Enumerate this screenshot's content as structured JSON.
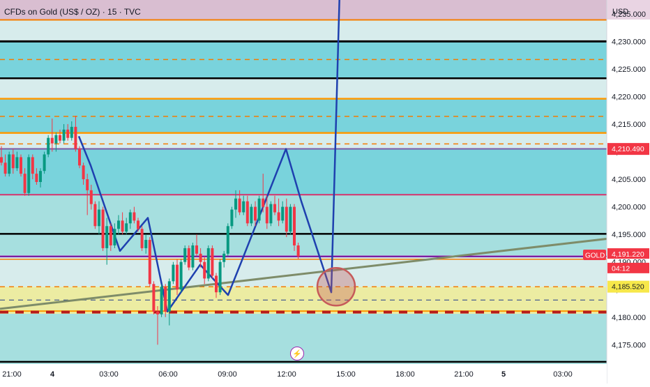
{
  "header": {
    "title": "CFDs on Gold (US$ / OZ) · 15 · TVC",
    "currency": "USD"
  },
  "chart_data": {
    "type": "candlestick",
    "title": "CFDs on Gold (US$ / OZ) · 15 · TVC",
    "ylim": [
      4171.5,
      4237.5
    ],
    "y_ticks": [
      "4,235.000",
      "4,230.000",
      "4,225.000",
      "4,220.000",
      "4,215.000",
      "4,210.000",
      "4,205.000",
      "4,200.000",
      "4,195.000",
      "4,190.000",
      "4,185.000",
      "4,180.000",
      "4,175.000"
    ],
    "y_tick_values": [
      4235,
      4230,
      4225,
      4220,
      4215,
      4210,
      4205,
      4200,
      4195,
      4190,
      4185,
      4180,
      4175
    ],
    "x_tick_labels": [
      "21:00",
      "4",
      "03:00",
      "06:00",
      "09:00",
      "12:00",
      "15:00",
      "18:00",
      "21:00",
      "5",
      "03:00"
    ],
    "price_labels": [
      {
        "text": "4,210.490",
        "value": 4210.49,
        "color": "#f23645"
      },
      {
        "text": "GOLD",
        "value": 4191.22,
        "color": "#f23645"
      },
      {
        "text": "4,191.220",
        "value": 4191.22,
        "color": "#f23645"
      },
      {
        "text": "04:12",
        "value": 4189.6,
        "color": "#f23645"
      },
      {
        "text": "4,185.520",
        "value": 4185.52,
        "color": "#f7e84a"
      }
    ],
    "zones": [
      {
        "from": 4230.0,
        "to": 4237.5,
        "color": "#d9bed1"
      },
      {
        "from": 4230.0,
        "to": 4233.9,
        "color": "#d7ecec"
      },
      {
        "from": 4223.3,
        "to": 4230.0,
        "color": "#79d3dc"
      },
      {
        "from": 4219.6,
        "to": 4223.3,
        "color": "#d7ecec"
      },
      {
        "from": 4213.4,
        "to": 4219.6,
        "color": "#79d3dc"
      },
      {
        "from": 4210.5,
        "to": 4213.4,
        "color": "#d7ecec"
      },
      {
        "from": 4202.2,
        "to": 4210.5,
        "color": "#79d3dc"
      },
      {
        "from": 4191.2,
        "to": 4202.2,
        "color": "#a6dfdf"
      },
      {
        "from": 4185.5,
        "to": 4191.2,
        "color": "#d7ecec"
      },
      {
        "from": 4180.6,
        "to": 4185.5,
        "color": "#ececa2"
      },
      {
        "from": 4171.5,
        "to": 4180.6,
        "color": "#a6dfdf"
      }
    ],
    "levels": [
      {
        "value": 4233.9,
        "color": "#f57c00",
        "style": "solid",
        "width": 2
      },
      {
        "value": 4230.0,
        "color": "#000000",
        "style": "solid",
        "width": 3
      },
      {
        "value": 4226.7,
        "color": "#f57c00",
        "style": "dashed",
        "width": 1.5
      },
      {
        "value": 4223.3,
        "color": "#000000",
        "style": "solid",
        "width": 2.5
      },
      {
        "value": 4219.6,
        "color": "#ff9800",
        "style": "solid",
        "width": 2.5
      },
      {
        "value": 4216.4,
        "color": "#f57c00",
        "style": "dashed",
        "width": 1.5
      },
      {
        "value": 4213.4,
        "color": "#ff9800",
        "style": "solid",
        "width": 2.5
      },
      {
        "value": 4211.4,
        "color": "#f57c00",
        "style": "dashed",
        "width": 1.5
      },
      {
        "value": 4210.5,
        "color": "#7b5aa6",
        "style": "solid",
        "width": 2
      },
      {
        "value": 4202.2,
        "color": "#d6336c",
        "style": "solid",
        "width": 2
      },
      {
        "value": 4195.1,
        "color": "#000000",
        "style": "solid",
        "width": 2.5
      },
      {
        "value": 4191.0,
        "color": "#7b1fa2",
        "style": "solid",
        "width": 2.5
      },
      {
        "value": 4190.5,
        "color": "#f57c00",
        "style": "solid",
        "width": 1.5
      },
      {
        "value": 4185.5,
        "color": "#f57c00",
        "style": "dashed",
        "width": 1.5
      },
      {
        "value": 4183.1,
        "color": "#1e3a8a",
        "style": "dashed",
        "width": 1
      },
      {
        "value": 4181.1,
        "color": "#ff9800",
        "style": "solid",
        "width": 2
      },
      {
        "value": 4180.9,
        "color": "#b71c1c",
        "style": "dashed",
        "width": 4
      },
      {
        "value": 4171.9,
        "color": "#000000",
        "style": "solid",
        "width": 2.5
      }
    ],
    "candles": [
      [
        4209.0,
        4211.0,
        4207.5,
        4208.0
      ],
      [
        4208.0,
        4209.5,
        4205.5,
        4206.0
      ],
      [
        4206.0,
        4210.0,
        4205.5,
        4209.5
      ],
      [
        4209.5,
        4210.5,
        4206.0,
        4207.0
      ],
      [
        4207.0,
        4210.0,
        4206.5,
        4209.0
      ],
      [
        4209.0,
        4209.5,
        4205.5,
        4206.0
      ],
      [
        4206.0,
        4207.0,
        4202.0,
        4202.5
      ],
      [
        4202.5,
        4209.5,
        4202.0,
        4209.0
      ],
      [
        4209.0,
        4209.5,
        4205.0,
        4206.0
      ],
      [
        4206.0,
        4207.0,
        4204.0,
        4204.5
      ],
      [
        4204.5,
        4207.0,
        4203.5,
        4206.5
      ],
      [
        4206.5,
        4210.0,
        4206.0,
        4209.5
      ],
      [
        4209.5,
        4213.0,
        4209.0,
        4212.5
      ],
      [
        4212.5,
        4216.0,
        4210.0,
        4211.5
      ],
      [
        4211.5,
        4213.5,
        4210.0,
        4213.0
      ],
      [
        4213.0,
        4214.0,
        4211.5,
        4212.0
      ],
      [
        4212.0,
        4215.0,
        4211.5,
        4214.0
      ],
      [
        4214.0,
        4215.0,
        4212.0,
        4212.5
      ],
      [
        4212.5,
        4215.5,
        4212.0,
        4214.5
      ],
      [
        4214.5,
        4216.5,
        4210.0,
        4210.5
      ],
      [
        4210.5,
        4211.0,
        4207.0,
        4207.5
      ],
      [
        4207.5,
        4208.0,
        4204.0,
        4205.0
      ],
      [
        4205.0,
        4206.0,
        4198.5,
        4203.0
      ],
      [
        4203.0,
        4204.0,
        4199.5,
        4200.5
      ],
      [
        4200.5,
        4201.0,
        4196.0,
        4196.5
      ],
      [
        4196.5,
        4201.0,
        4195.0,
        4199.5
      ],
      [
        4199.5,
        4200.0,
        4192.0,
        4192.5
      ],
      [
        4192.5,
        4198.0,
        4189.5,
        4196.5
      ],
      [
        4196.5,
        4197.0,
        4192.0,
        4193.0
      ],
      [
        4193.0,
        4197.0,
        4192.5,
        4196.0
      ],
      [
        4196.0,
        4198.5,
        4195.0,
        4197.5
      ],
      [
        4197.5,
        4199.0,
        4195.0,
        4195.5
      ],
      [
        4195.5,
        4198.0,
        4195.0,
        4197.0
      ],
      [
        4197.0,
        4199.5,
        4196.0,
        4199.0
      ],
      [
        4199.0,
        4200.0,
        4197.0,
        4197.5
      ],
      [
        4197.5,
        4198.0,
        4195.5,
        4196.0
      ],
      [
        4196.0,
        4196.5,
        4192.0,
        4192.5
      ],
      [
        4192.5,
        4195.0,
        4191.5,
        4194.0
      ],
      [
        4194.0,
        4194.5,
        4185.5,
        4186.0
      ],
      [
        4186.0,
        4186.5,
        4180.5,
        4181.0
      ],
      [
        4181.0,
        4182.0,
        4175.0,
        4180.5
      ],
      [
        4180.5,
        4186.0,
        4180.0,
        4185.5
      ],
      [
        4185.5,
        4186.0,
        4180.0,
        4181.0
      ],
      [
        4181.0,
        4187.0,
        4178.5,
        4186.5
      ],
      [
        4186.5,
        4190.0,
        4186.0,
        4189.5
      ],
      [
        4189.5,
        4190.5,
        4184.0,
        4185.0
      ],
      [
        4185.0,
        4190.5,
        4184.5,
        4190.0
      ],
      [
        4190.0,
        4193.0,
        4189.5,
        4192.5
      ],
      [
        4192.5,
        4193.0,
        4188.5,
        4189.0
      ],
      [
        4189.0,
        4193.5,
        4188.5,
        4193.0
      ],
      [
        4193.0,
        4195.0,
        4191.0,
        4191.5
      ],
      [
        4191.5,
        4192.5,
        4189.0,
        4190.0
      ],
      [
        4190.0,
        4191.0,
        4186.0,
        4187.0
      ],
      [
        4187.0,
        4193.0,
        4186.5,
        4192.5
      ],
      [
        4192.5,
        4193.0,
        4187.0,
        4187.5
      ],
      [
        4187.5,
        4188.0,
        4183.5,
        4184.5
      ],
      [
        4184.5,
        4190.5,
        4184.0,
        4190.0
      ],
      [
        4190.0,
        4192.0,
        4189.0,
        4191.5
      ],
      [
        4191.5,
        4197.0,
        4191.0,
        4196.5
      ],
      [
        4196.5,
        4200.0,
        4196.0,
        4199.5
      ],
      [
        4199.5,
        4203.0,
        4198.0,
        4201.5
      ],
      [
        4201.5,
        4203.0,
        4198.5,
        4199.0
      ],
      [
        4199.0,
        4202.0,
        4198.5,
        4201.0
      ],
      [
        4201.0,
        4202.0,
        4196.5,
        4197.0
      ],
      [
        4197.0,
        4200.5,
        4196.5,
        4200.0
      ],
      [
        4200.0,
        4201.0,
        4196.5,
        4197.5
      ],
      [
        4197.5,
        4202.0,
        4197.0,
        4201.5
      ],
      [
        4201.5,
        4206.0,
        4199.0,
        4200.0
      ],
      [
        4200.0,
        4202.0,
        4196.0,
        4197.0
      ],
      [
        4197.0,
        4201.0,
        4196.5,
        4200.5
      ],
      [
        4200.5,
        4202.0,
        4198.5,
        4199.0
      ],
      [
        4199.0,
        4201.5,
        4196.5,
        4197.5
      ],
      [
        4197.5,
        4201.0,
        4197.0,
        4200.0
      ],
      [
        4200.0,
        4201.5,
        4194.5,
        4195.5
      ],
      [
        4195.5,
        4200.5,
        4195.0,
        4200.0
      ],
      [
        4200.0,
        4200.5,
        4192.0,
        4193.0
      ],
      [
        4193.0,
        4193.5,
        4190.5,
        4191.0
      ]
    ],
    "candle_x_start": 2,
    "candle_x_step": 5.6,
    "trendlines": [
      {
        "points": [
          [
            0,
            4181.5
          ],
          [
            870,
            4194.2
          ]
        ],
        "color": "#7e8c69",
        "width": 3
      },
      {
        "points": [
          [
            113,
            4212.8
          ],
          [
            130,
            4207.5
          ],
          [
            172,
            4192.0
          ],
          [
            212,
            4198.0
          ],
          [
            240,
            4181.0
          ],
          [
            287,
            4189.5
          ],
          [
            327,
            4184.0
          ],
          [
            346,
            4190.0
          ],
          [
            410,
            4210.5
          ],
          [
            432,
            4201.0
          ],
          [
            475,
            4184.5
          ],
          [
            487,
            4239.0
          ]
        ],
        "color": "#1e40af",
        "width": 2.5
      }
    ],
    "target_circle": {
      "x": 482,
      "value": 4185.5,
      "color": "#c65a5a"
    },
    "grid": false
  }
}
